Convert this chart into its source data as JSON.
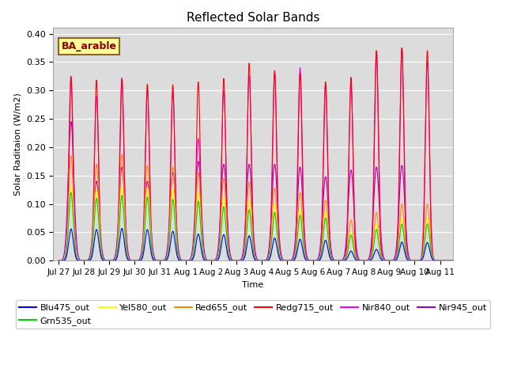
{
  "title": "Reflected Solar Bands",
  "xlabel": "Time",
  "ylabel": "Solar Raditaion (W/m2)",
  "annotation_text": "BA_arable",
  "annotation_color": "#8B0000",
  "annotation_bg": "#FFFF99",
  "annotation_border": "#8B6914",
  "ylim": [
    0.0,
    0.41
  ],
  "yticks": [
    0.0,
    0.05,
    0.1,
    0.15,
    0.2,
    0.25,
    0.3,
    0.35,
    0.4
  ],
  "bg_color": "#DCDCDC",
  "lines": [
    {
      "label": "Blu475_out",
      "color": "#0000FF",
      "lw": 0.8
    },
    {
      "label": "Grn535_out",
      "color": "#00CC00",
      "lw": 0.8
    },
    {
      "label": "Yel580_out",
      "color": "#FFFF00",
      "lw": 0.8
    },
    {
      "label": "Red655_out",
      "color": "#FF8800",
      "lw": 0.8
    },
    {
      "label": "Redg715_out",
      "color": "#FF0000",
      "lw": 0.8
    },
    {
      "label": "Nir840_out",
      "color": "#FF00FF",
      "lw": 0.8
    },
    {
      "label": "Nir945_out",
      "color": "#9900CC",
      "lw": 0.8
    }
  ],
  "xtick_labels": [
    "Jul 27",
    "Jul 28",
    "Jul 29",
    "Jul 30",
    "Jul 31",
    "Aug 1",
    "Aug 2",
    "Aug 3",
    "Aug 4",
    "Aug 5",
    "Aug 6",
    "Aug 7",
    "Aug 8",
    "Aug 9",
    "Aug 10",
    "Aug 11"
  ],
  "n_days": 16,
  "day_peaks": {
    "blu": [
      0.056,
      0.055,
      0.057,
      0.055,
      0.052,
      0.047,
      0.046,
      0.044,
      0.04,
      0.038,
      0.036,
      0.017,
      0.02,
      0.033,
      0.032,
      0.0
    ],
    "grn": [
      0.12,
      0.11,
      0.115,
      0.112,
      0.108,
      0.105,
      0.095,
      0.09,
      0.085,
      0.08,
      0.075,
      0.045,
      0.055,
      0.065,
      0.065,
      0.0
    ],
    "yel": [
      0.13,
      0.125,
      0.13,
      0.128,
      0.125,
      0.12,
      0.11,
      0.105,
      0.1,
      0.09,
      0.085,
      0.05,
      0.065,
      0.075,
      0.075,
      0.0
    ],
    "red": [
      0.185,
      0.17,
      0.187,
      0.168,
      0.165,
      0.155,
      0.145,
      0.138,
      0.128,
      0.12,
      0.107,
      0.072,
      0.085,
      0.1,
      0.1,
      0.0
    ],
    "redg": [
      0.323,
      0.318,
      0.32,
      0.311,
      0.31,
      0.315,
      0.321,
      0.348,
      0.335,
      0.33,
      0.315,
      0.323,
      0.37,
      0.375,
      0.37,
      0.0
    ],
    "nir840": [
      0.325,
      0.29,
      0.322,
      0.3,
      0.295,
      0.215,
      0.3,
      0.325,
      0.33,
      0.34,
      0.312,
      0.31,
      0.37,
      0.375,
      0.35,
      0.0
    ],
    "nir945": [
      0.245,
      0.14,
      0.165,
      0.14,
      0.155,
      0.175,
      0.17,
      0.17,
      0.17,
      0.165,
      0.148,
      0.16,
      0.165,
      0.168,
      0.0,
      0.0
    ]
  }
}
